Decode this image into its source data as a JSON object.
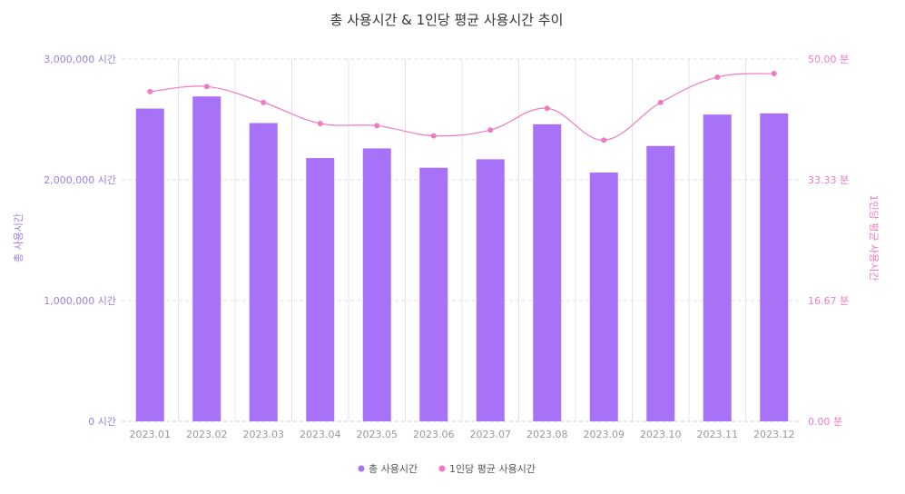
{
  "chart_data": {
    "type": "bar",
    "title": "총 사용시간 & 1인당 평균 사용시간 추이",
    "categories": [
      "2023.01",
      "2023.02",
      "2023.03",
      "2023.04",
      "2023.05",
      "2023.06",
      "2023.07",
      "2023.08",
      "2023.09",
      "2023.10",
      "2023.11",
      "2023.12"
    ],
    "series": [
      {
        "name": "총 사용시간",
        "type": "bar",
        "axis": "left",
        "color": "#a771f8",
        "values": [
          2590000,
          2690000,
          2470000,
          2180000,
          2260000,
          2100000,
          2170000,
          2460000,
          2060000,
          2280000,
          2540000,
          2550000
        ]
      },
      {
        "name": "1인당 평균 사용시간",
        "type": "line",
        "axis": "right",
        "color": "#ee7bc3",
        "values": [
          45.5,
          46.2,
          44.0,
          41.1,
          40.8,
          39.4,
          40.2,
          43.2,
          38.8,
          44.0,
          47.5,
          48.0
        ]
      }
    ],
    "ylabel": "총 사용시간",
    "y2label": "1인당 평균 사용시간",
    "ylim": [
      0,
      3000000
    ],
    "y2lim": [
      0,
      50
    ],
    "yticks": [
      {
        "value": 0,
        "label": "0 시간"
      },
      {
        "value": 1000000,
        "label": "1,000,000 시간"
      },
      {
        "value": 2000000,
        "label": "2,000,000 시간"
      },
      {
        "value": 3000000,
        "label": "3,000,000 시간"
      }
    ],
    "y2ticks": [
      {
        "value": 0,
        "label": "0.00 분"
      },
      {
        "value": 16.67,
        "label": "16.67 분"
      },
      {
        "value": 33.33,
        "label": "33.33 분"
      },
      {
        "value": 50,
        "label": "50.00 분"
      }
    ],
    "grid": true,
    "legend_position": "bottom-center"
  }
}
